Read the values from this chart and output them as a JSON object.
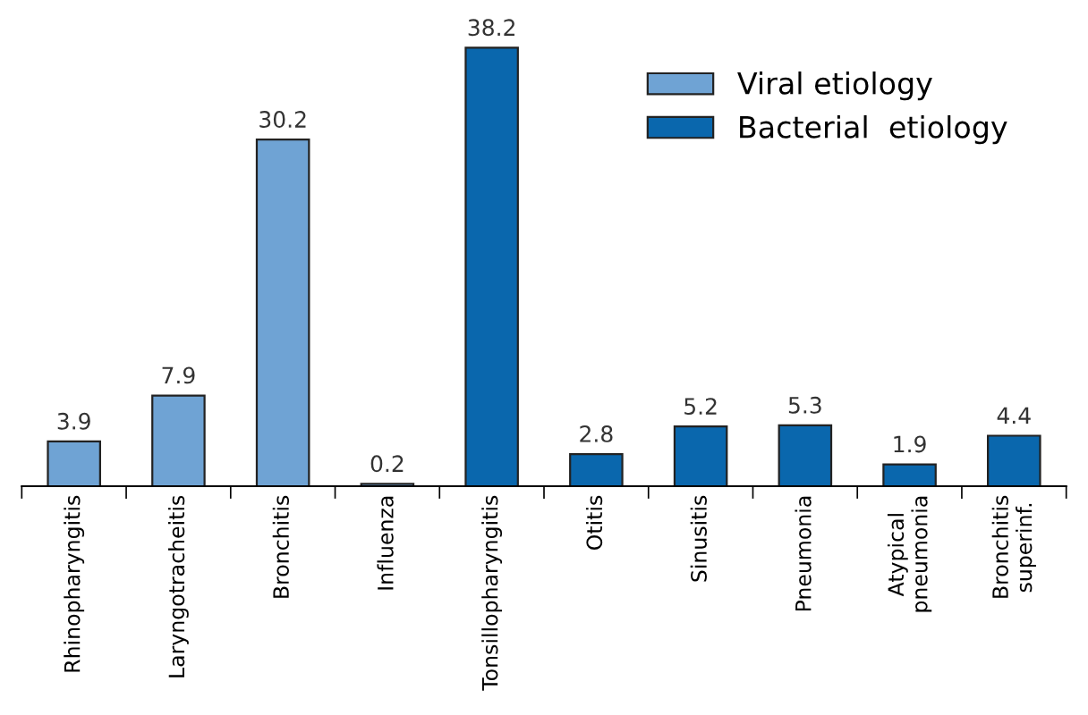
{
  "chart_data": {
    "type": "bar",
    "categories": [
      "Rhinopharyngitis",
      "Laryngotracheitis",
      "Bronchitis",
      "Influenza",
      "Tonsillopharyngitis",
      "Otitis",
      "Sinusitis",
      "Pneumonia",
      "Atypical\npneumonia",
      "Bronchitis\nsuperinf."
    ],
    "series": [
      {
        "name": "Viral etiology",
        "color": "#6fa3d4",
        "values": [
          3.9,
          7.9,
          30.2,
          0.2,
          null,
          null,
          null,
          null,
          null,
          null
        ]
      },
      {
        "name": "Bacterial  etiology",
        "color": "#0a67ad",
        "values": [
          null,
          null,
          null,
          null,
          38.2,
          2.8,
          5.2,
          5.3,
          1.9,
          4.4
        ]
      }
    ],
    "data_labels": true,
    "legend": "top right",
    "grid": false
  }
}
